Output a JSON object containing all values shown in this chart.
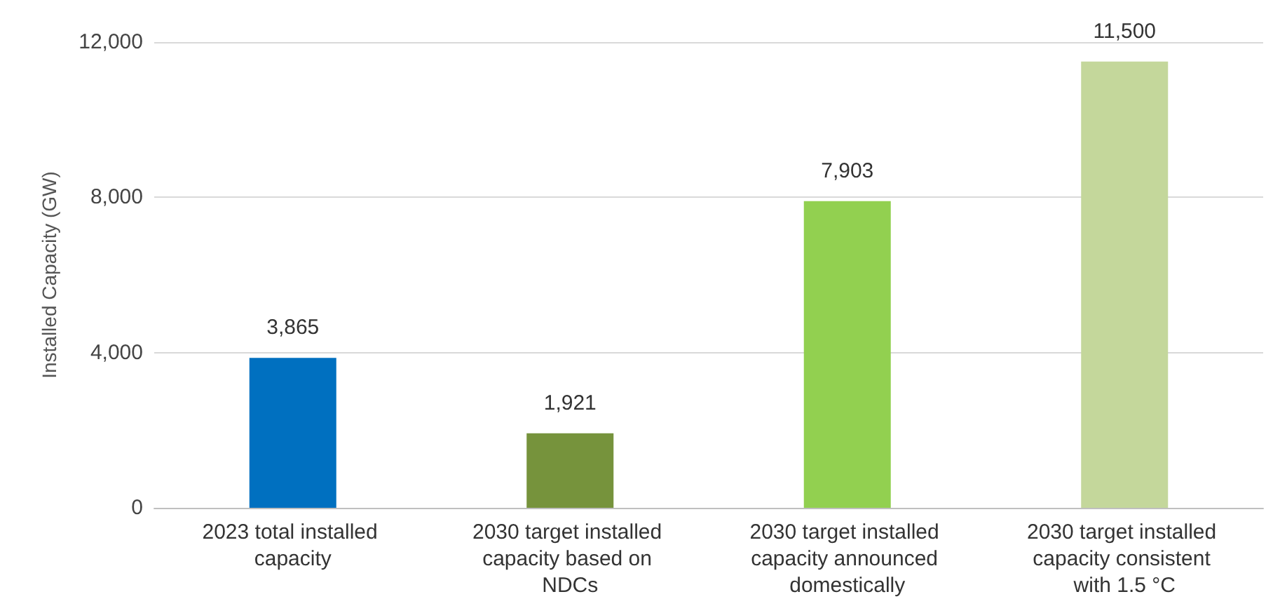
{
  "chart_data": {
    "type": "bar",
    "ylabel": "Installed Capacity (GW)",
    "categories": [
      "2023 total installed capacity",
      "2030 target installed capacity based on NDCs",
      "2030 target installed capacity announced domestically",
      "2030 target installed capacity consistent with 1.5 °C"
    ],
    "values": [
      3865,
      1921,
      7903,
      11500
    ],
    "colors": [
      "#0070c0",
      "#76933c",
      "#92d050",
      "#c4d79b"
    ],
    "value_labels": [
      "3,865",
      "1,921",
      "7,903",
      "11,500"
    ],
    "ylim": [
      0,
      12000
    ],
    "yticks": [
      0,
      {
        "value": 4000,
        "label": "4,000"
      },
      {
        "value": 8000,
        "label": "8,000"
      },
      {
        "value": 12000,
        "label": "12,000"
      }
    ],
    "grid": "y"
  }
}
